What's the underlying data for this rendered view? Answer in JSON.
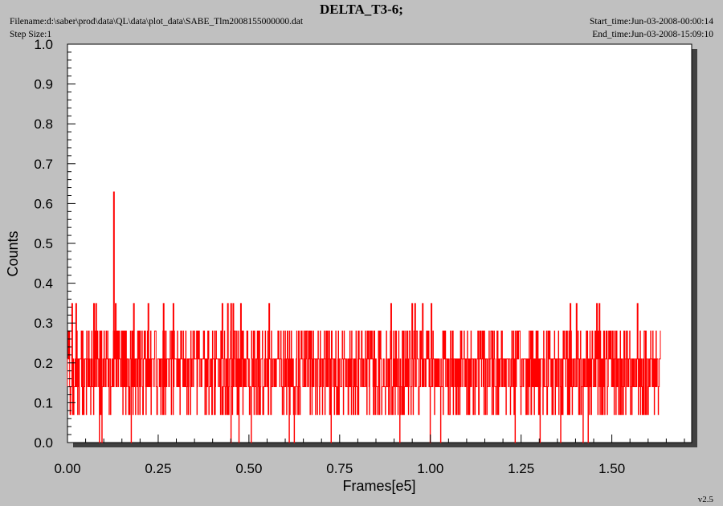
{
  "header": {
    "title": "DELTA_T3-6;",
    "filename": "Filename:d:\\saber\\prod\\data\\QL\\data\\plot_data\\SABE_Tlm2008155000000.dat",
    "step_size": "Step Size:1",
    "start_time": "Start_time:Jun-03-2008-00:00:14",
    "end_time": "End_time:Jun-03-2008-15:09:10",
    "version": "v2.5"
  },
  "colors": {
    "background": "#c0c0c0",
    "plot_area": "#ffffff",
    "shadow": "#404040",
    "series": "#ff0000"
  },
  "chart_data": {
    "type": "line",
    "title": "DELTA_T3-6;",
    "xlabel": "Frames[e5]",
    "ylabel": "Counts",
    "xlim": [
      0,
      1.72
    ],
    "ylim": [
      0,
      1.0
    ],
    "x_ticks": [
      "0.00",
      "0.25",
      "0.50",
      "0.75",
      "1.00",
      "1.25",
      "1.50"
    ],
    "y_ticks": [
      "0.0",
      "0.1",
      "0.2",
      "0.3",
      "0.4",
      "0.5",
      "0.6",
      "0.7",
      "0.8",
      "0.9",
      "1.0"
    ],
    "grid": false,
    "series": [
      {
        "x_range": [
          0,
          1.635
        ],
        "typical_band": [
          0.07,
          0.28
        ],
        "levels": [
          0.0,
          0.07,
          0.14,
          0.21,
          0.28,
          0.35
        ],
        "spikes": [
          {
            "x": 0.013,
            "y": 0.35
          },
          {
            "x": 0.024,
            "y": 0.35
          },
          {
            "x": 0.073,
            "y": 0.35
          },
          {
            "x": 0.079,
            "y": 0.35
          },
          {
            "x": 0.128,
            "y": 0.63
          },
          {
            "x": 0.133,
            "y": 0.35
          },
          {
            "x": 0.183,
            "y": 0.35
          },
          {
            "x": 0.223,
            "y": 0.35
          },
          {
            "x": 0.265,
            "y": 0.35
          },
          {
            "x": 0.292,
            "y": 0.35
          },
          {
            "x": 0.427,
            "y": 0.35
          },
          {
            "x": 0.442,
            "y": 0.35
          },
          {
            "x": 0.451,
            "y": 0.35
          },
          {
            "x": 0.457,
            "y": 0.35
          },
          {
            "x": 0.478,
            "y": 0.35
          },
          {
            "x": 0.556,
            "y": 0.35
          },
          {
            "x": 0.892,
            "y": 0.35
          },
          {
            "x": 0.95,
            "y": 0.35
          },
          {
            "x": 0.958,
            "y": 0.35
          },
          {
            "x": 0.979,
            "y": 0.35
          },
          {
            "x": 1.003,
            "y": 0.35
          },
          {
            "x": 1.386,
            "y": 0.35
          },
          {
            "x": 1.403,
            "y": 0.35
          },
          {
            "x": 1.459,
            "y": 0.35
          },
          {
            "x": 1.466,
            "y": 0.35
          },
          {
            "x": 1.571,
            "y": 0.35
          }
        ]
      }
    ]
  }
}
